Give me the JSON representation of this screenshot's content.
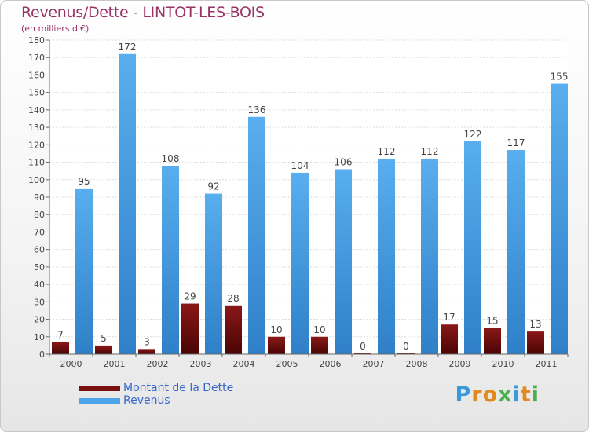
{
  "chart_data": {
    "type": "bar",
    "title": "Revenus/Dette - LINTOT-LES-BOIS",
    "subtitle": "(en milliers d'€)",
    "categories": [
      "2000",
      "2001",
      "2002",
      "2003",
      "2004",
      "2005",
      "2006",
      "2007",
      "2008",
      "2009",
      "2010",
      "2011"
    ],
    "series": [
      {
        "name": "Montant de la Dette",
        "color": "#7a1010",
        "values": [
          7,
          5,
          3,
          29,
          28,
          10,
          10,
          0,
          0,
          17,
          15,
          13
        ]
      },
      {
        "name": "Revenus",
        "color": "#4ea4e8",
        "values": [
          95,
          172,
          108,
          92,
          136,
          104,
          106,
          112,
          112,
          122,
          117,
          155
        ]
      }
    ],
    "ylim": [
      0,
      180
    ],
    "yticks": [
      0,
      10,
      20,
      30,
      40,
      50,
      60,
      70,
      80,
      90,
      100,
      110,
      120,
      130,
      140,
      150,
      160,
      170,
      180
    ],
    "grid": true,
    "legend_position": "bottom-left"
  },
  "logo": {
    "text": "Proxiti",
    "colors": [
      "#3a9ad9",
      "#e08a1e",
      "#e08a1e",
      "#4caf50",
      "#3a9ad9",
      "#e08a1e",
      "#4caf50"
    ]
  }
}
